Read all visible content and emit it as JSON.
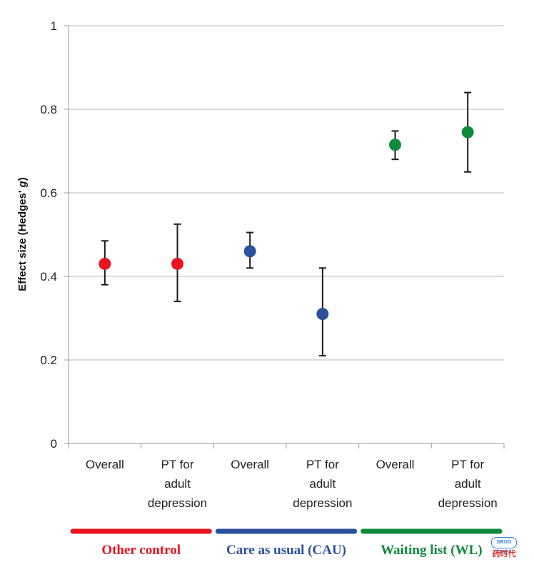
{
  "chart_data": {
    "type": "scatter",
    "ylabel_main": "Effect size (Hedges' ",
    "ylabel_italic": "g",
    "ylabel_close": ")",
    "ylim": [
      0,
      1
    ],
    "yticks": [
      "0",
      "0.2",
      "0.4",
      "0.6",
      "0.8",
      "1"
    ],
    "categories": [
      {
        "lines": [
          "Overall"
        ]
      },
      {
        "lines": [
          "PT for",
          "adult",
          "depression"
        ]
      },
      {
        "lines": [
          "Overall"
        ]
      },
      {
        "lines": [
          "PT for",
          "adult",
          "depression"
        ]
      },
      {
        "lines": [
          "Overall"
        ]
      },
      {
        "lines": [
          "PT for",
          "adult",
          "depression"
        ]
      }
    ],
    "points": [
      {
        "value": 0.43,
        "lower": 0.38,
        "upper": 0.485,
        "group": 0
      },
      {
        "value": 0.43,
        "lower": 0.34,
        "upper": 0.525,
        "group": 0
      },
      {
        "value": 0.46,
        "lower": 0.42,
        "upper": 0.505,
        "group": 1
      },
      {
        "value": 0.31,
        "lower": 0.21,
        "upper": 0.42,
        "group": 1
      },
      {
        "value": 0.715,
        "lower": 0.68,
        "upper": 0.748,
        "group": 2
      },
      {
        "value": 0.745,
        "lower": 0.65,
        "upper": 0.84,
        "group": 2
      }
    ],
    "groups": [
      {
        "label": "Other control",
        "color": "#e8141f"
      },
      {
        "label": "Care as usual (CAU)",
        "color": "#2c4f9e"
      },
      {
        "label": "Waiting list (WL)",
        "color": "#0f8a3c"
      }
    ],
    "grid": true
  },
  "watermark": {
    "badge": "DRUG TIMES",
    "text": "药时代"
  }
}
